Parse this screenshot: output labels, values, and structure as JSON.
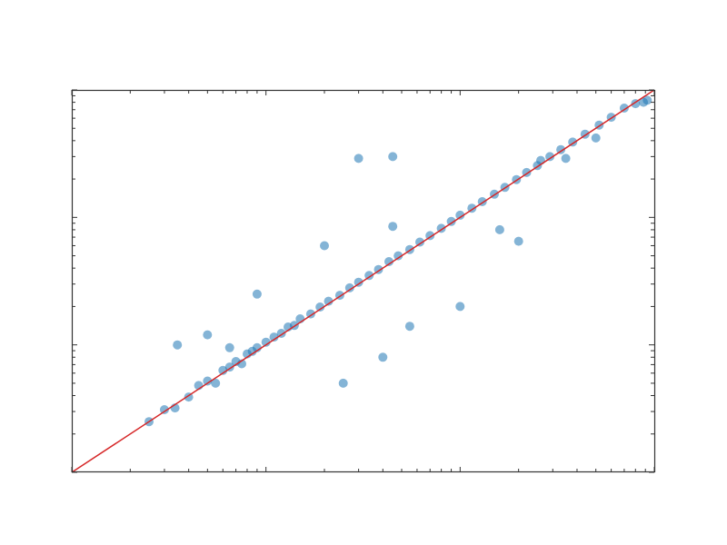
{
  "chart_data": {
    "type": "scatter",
    "title": "",
    "xlabel": "",
    "ylabel": "",
    "xscale": "log",
    "yscale": "log",
    "xlim": [
      1,
      1000
    ],
    "ylim": [
      1,
      1000
    ],
    "grid": false,
    "legend": "none",
    "tick_labels_shown": false,
    "colors": {
      "points": "#1f77b4",
      "reference_line": "#d62728",
      "axes": "#333333"
    },
    "reference_line": {
      "type": "identity",
      "from": [
        1,
        1
      ],
      "to": [
        1000,
        1000
      ]
    },
    "series": [
      {
        "values": [
          [
            2.5,
            2.5
          ],
          [
            3.0,
            3.1
          ],
          [
            3.4,
            3.2
          ],
          [
            4.0,
            3.9
          ],
          [
            4.5,
            4.8
          ],
          [
            5.0,
            5.2
          ],
          [
            5.5,
            5.0
          ],
          [
            6.0,
            6.3
          ],
          [
            6.5,
            6.7
          ],
          [
            7.0,
            7.4
          ],
          [
            7.5,
            7.1
          ],
          [
            8.0,
            8.5
          ],
          [
            8.5,
            8.9
          ],
          [
            9.0,
            9.5
          ],
          [
            10.0,
            10.5
          ],
          [
            11.0,
            11.5
          ],
          [
            12.0,
            12.3
          ],
          [
            13.0,
            13.8
          ],
          [
            14.0,
            14.2
          ],
          [
            15.0,
            16.0
          ],
          [
            17.0,
            17.5
          ],
          [
            19.0,
            19.8
          ],
          [
            21.0,
            22.0
          ],
          [
            24.0,
            24.5
          ],
          [
            27.0,
            28.0
          ],
          [
            30.0,
            31.0
          ],
          [
            34.0,
            35.0
          ],
          [
            38.0,
            39.0
          ],
          [
            43.0,
            45.0
          ],
          [
            48.0,
            50.0
          ],
          [
            55.0,
            56.0
          ],
          [
            62.0,
            64.0
          ],
          [
            70.0,
            72.0
          ],
          [
            80.0,
            82.0
          ],
          [
            90.0,
            93.0
          ],
          [
            100.0,
            104.0
          ],
          [
            115.0,
            118.0
          ],
          [
            130.0,
            133.0
          ],
          [
            150.0,
            152.0
          ],
          [
            170.0,
            172.0
          ],
          [
            195.0,
            198.0
          ],
          [
            220.0,
            225.0
          ],
          [
            250.0,
            255.0
          ],
          [
            290.0,
            300.0
          ],
          [
            330.0,
            340.0
          ],
          [
            380.0,
            390.0
          ],
          [
            440.0,
            450.0
          ],
          [
            520.0,
            530.0
          ],
          [
            600.0,
            610.0
          ],
          [
            700.0,
            720.0
          ],
          [
            3.5,
            10.0
          ],
          [
            5.0,
            12.0
          ],
          [
            6.5,
            9.5
          ],
          [
            9.0,
            25.0
          ],
          [
            20.0,
            60.0
          ],
          [
            45.0,
            85.0
          ],
          [
            30.0,
            290.0
          ],
          [
            45.0,
            300.0
          ],
          [
            25.0,
            5.0
          ],
          [
            40.0,
            8.0
          ],
          [
            55.0,
            14.0
          ],
          [
            100.0,
            20.0
          ],
          [
            200.0,
            65.0
          ],
          [
            160.0,
            80.0
          ],
          [
            260.0,
            280.0
          ],
          [
            350.0,
            290.0
          ],
          [
            500.0,
            420.0
          ],
          [
            800.0,
            780.0
          ],
          [
            880.0,
            800.0
          ],
          [
            920.0,
            830.0
          ]
        ]
      }
    ]
  }
}
